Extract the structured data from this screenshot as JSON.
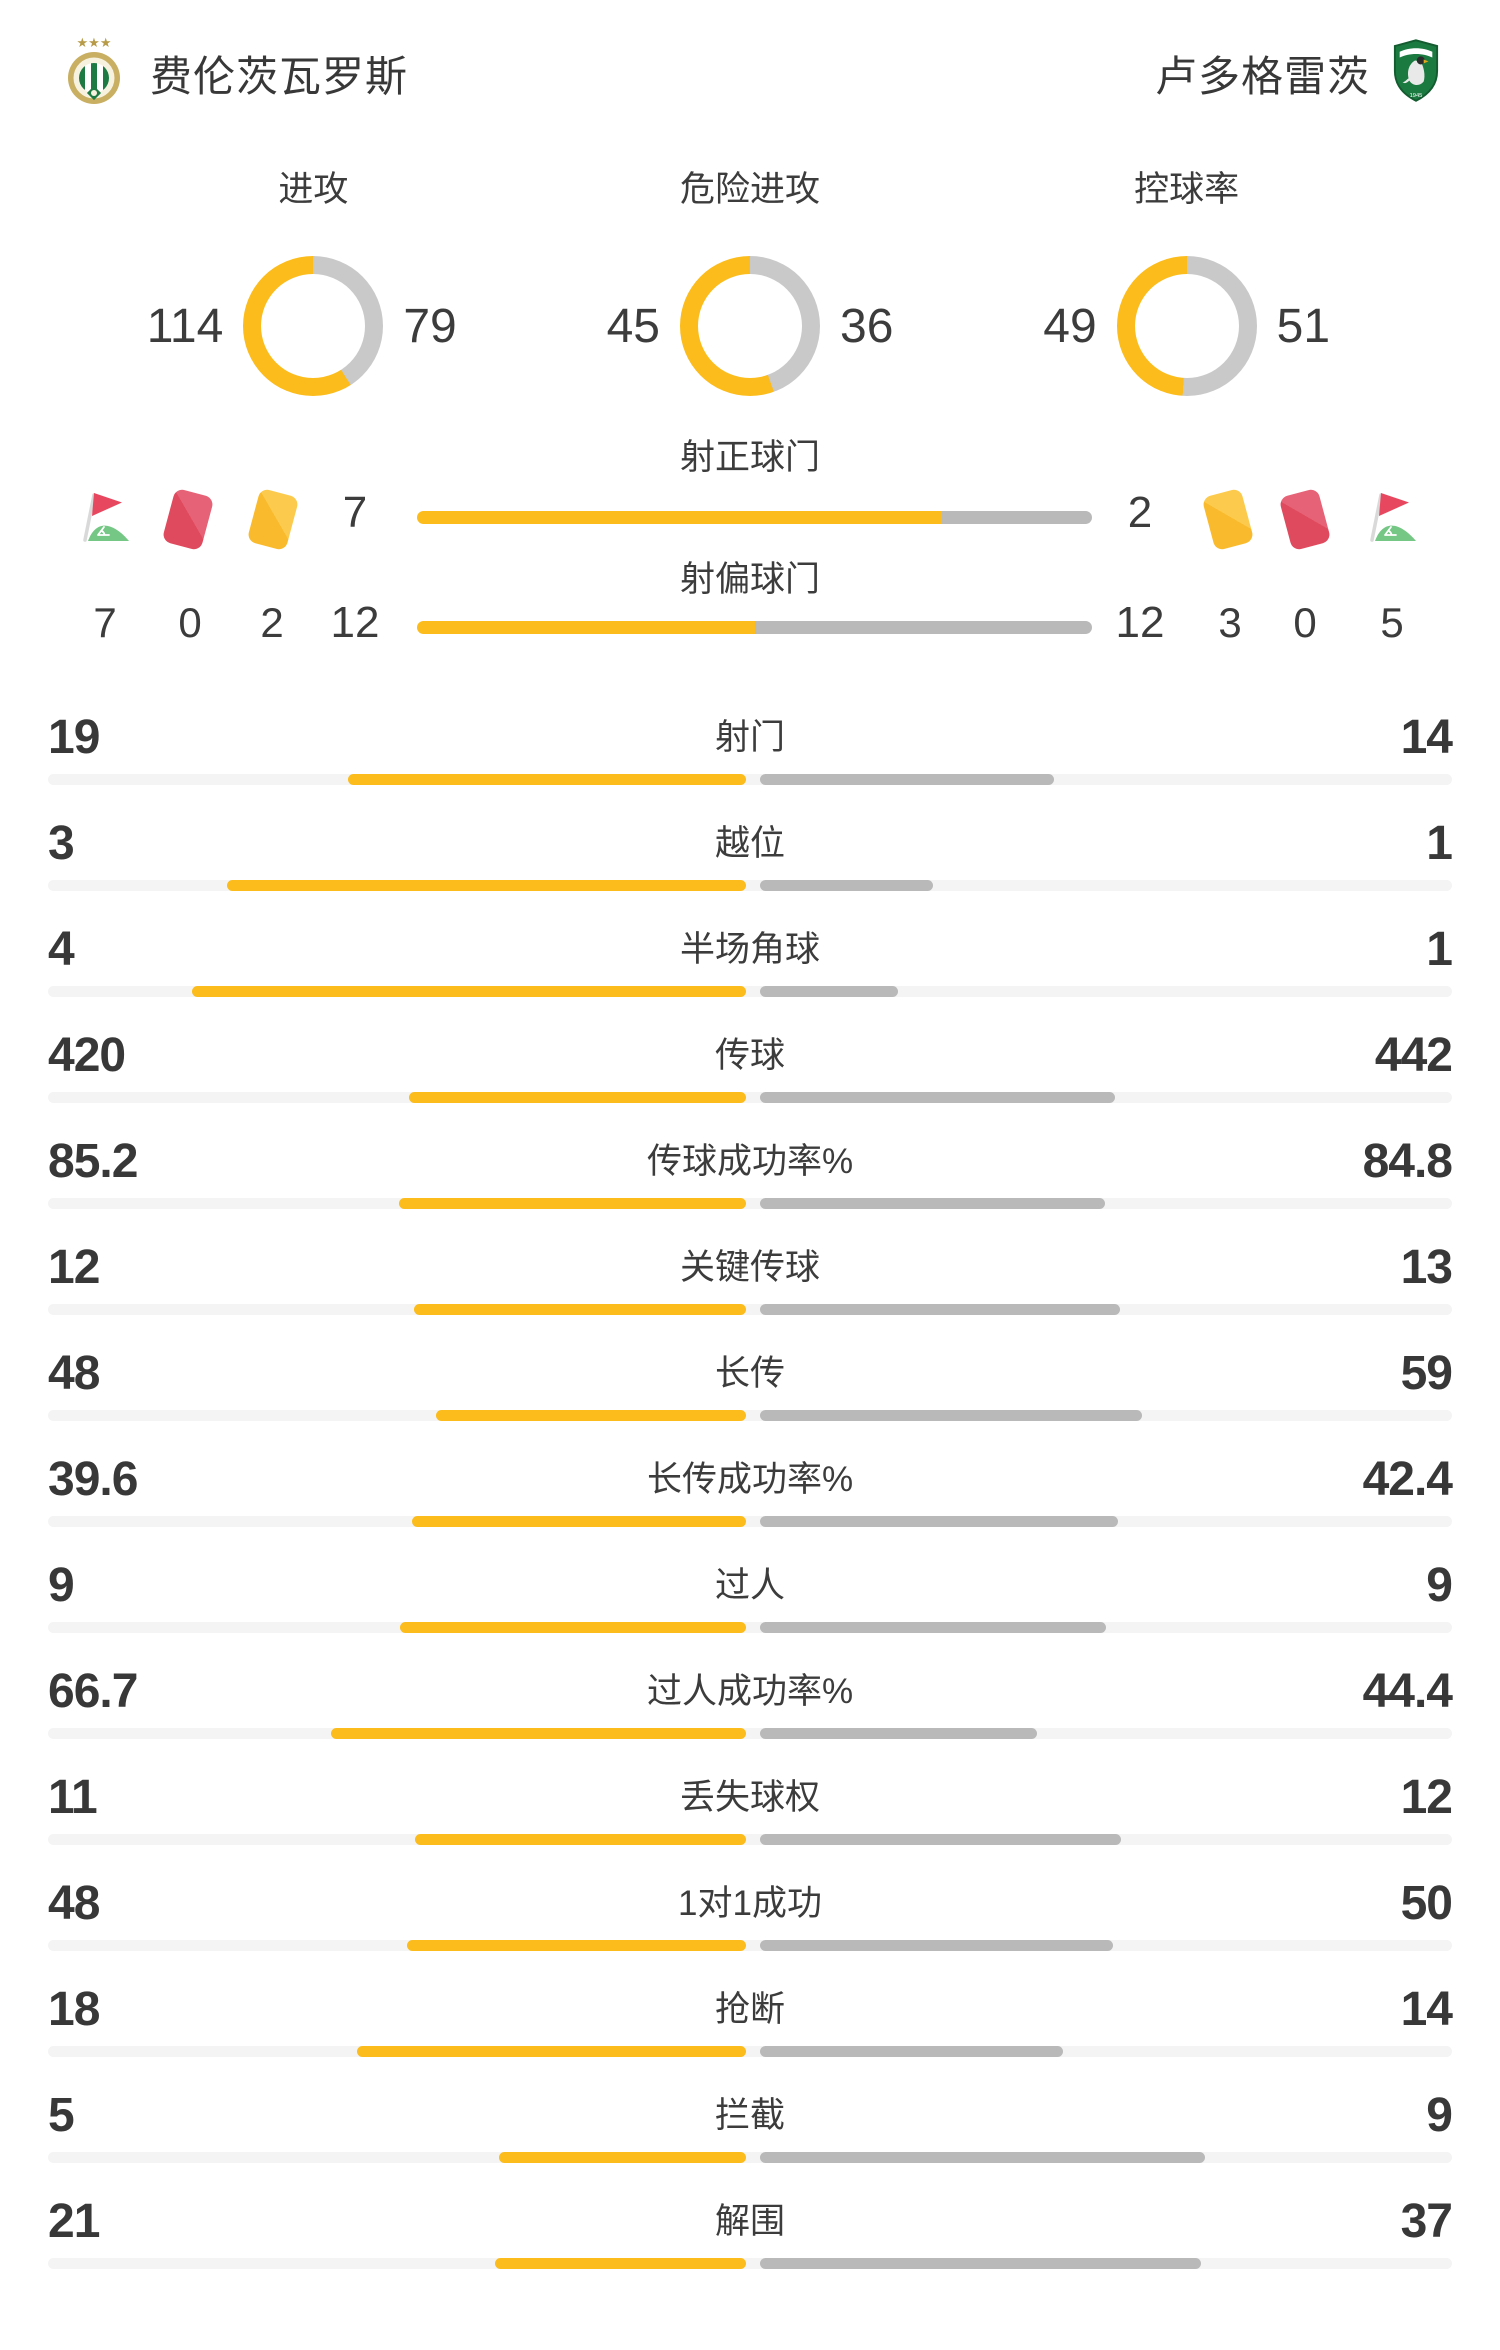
{
  "teams": {
    "home": {
      "name": "费伦茨瓦罗斯"
    },
    "away": {
      "name": "卢多格雷茨"
    }
  },
  "colors": {
    "home_accent": "#fbbc1c",
    "away_bar": "#b9b9b9",
    "donut_away": "#c9c9c9",
    "track": "#f4f4f4",
    "text_dark": "#3c3c3c",
    "red_card": "#e04a5e",
    "red_card_light": "#e66276",
    "yellow_card": "#f9bb2d",
    "yellow_card_light": "#fccb4e",
    "flag_red": "#e8485f",
    "flag_green": "#74c784",
    "flag_pole": "#d9d9d9"
  },
  "donuts": [
    {
      "title": "进攻",
      "home": 114,
      "away": 79
    },
    {
      "title": "危险进攻",
      "home": 45,
      "away": 36
    },
    {
      "title": "控球率",
      "home": 49,
      "away": 51
    }
  ],
  "discipline": {
    "home": {
      "corner_kicks": 7,
      "red_cards": 0,
      "yellow_cards": 2
    },
    "away": {
      "yellow_cards": 3,
      "red_cards": 0,
      "corner_kicks": 5
    }
  },
  "shot_rows": [
    {
      "label": "射正球门",
      "home": 7,
      "away": 2
    },
    {
      "label": "射偏球门",
      "home": 12,
      "away": 12
    }
  ],
  "stats": [
    {
      "label": "射门",
      "home": 19,
      "away": 14
    },
    {
      "label": "越位",
      "home": 3,
      "away": 1
    },
    {
      "label": "半场角球",
      "home": 4,
      "away": 1
    },
    {
      "label": "传球",
      "home": 420,
      "away": 442
    },
    {
      "label": "传球成功率%",
      "home": 85.2,
      "away": 84.8
    },
    {
      "label": "关键传球",
      "home": 12,
      "away": 13
    },
    {
      "label": "长传",
      "home": 48,
      "away": 59
    },
    {
      "label": "长传成功率%",
      "home": 39.6,
      "away": 42.4
    },
    {
      "label": "过人",
      "home": 9,
      "away": 9
    },
    {
      "label": "过人成功率%",
      "home": 66.7,
      "away": 44.4
    },
    {
      "label": "丢失球权",
      "home": 11,
      "away": 12
    },
    {
      "label": "1对1成功",
      "home": 48,
      "away": 50
    },
    {
      "label": "抢断",
      "home": 18,
      "away": 14
    },
    {
      "label": "拦截",
      "home": 5,
      "away": 9
    },
    {
      "label": "解围",
      "home": 21,
      "away": 37
    }
  ],
  "chart_data": [
    {
      "type": "pie",
      "title": "进攻",
      "labels": [
        "费伦茨瓦罗斯",
        "卢多格雷茨"
      ],
      "values": [
        114,
        79
      ]
    },
    {
      "type": "pie",
      "title": "危险进攻",
      "labels": [
        "费伦茨瓦罗斯",
        "卢多格雷茨"
      ],
      "values": [
        45,
        36
      ]
    },
    {
      "type": "pie",
      "title": "控球率",
      "labels": [
        "费伦茨瓦罗斯",
        "卢多格雷茨"
      ],
      "values": [
        49,
        51
      ]
    },
    {
      "type": "bar",
      "title": "比赛技术统计",
      "categories": [
        "射正球门",
        "射偏球门",
        "射门",
        "越位",
        "半场角球",
        "传球",
        "传球成功率%",
        "关键传球",
        "长传",
        "长传成功率%",
        "过人",
        "过人成功率%",
        "丢失球权",
        "1对1成功",
        "抢断",
        "拦截",
        "解围"
      ],
      "series": [
        {
          "name": "费伦茨瓦罗斯",
          "values": [
            7,
            12,
            19,
            3,
            4,
            420,
            85.2,
            12,
            48,
            39.6,
            9,
            66.7,
            11,
            48,
            18,
            5,
            21
          ]
        },
        {
          "name": "卢多格雷茨",
          "values": [
            2,
            12,
            14,
            1,
            1,
            442,
            84.8,
            13,
            59,
            42.4,
            9,
            44.4,
            12,
            50,
            14,
            9,
            37
          ]
        }
      ]
    }
  ]
}
